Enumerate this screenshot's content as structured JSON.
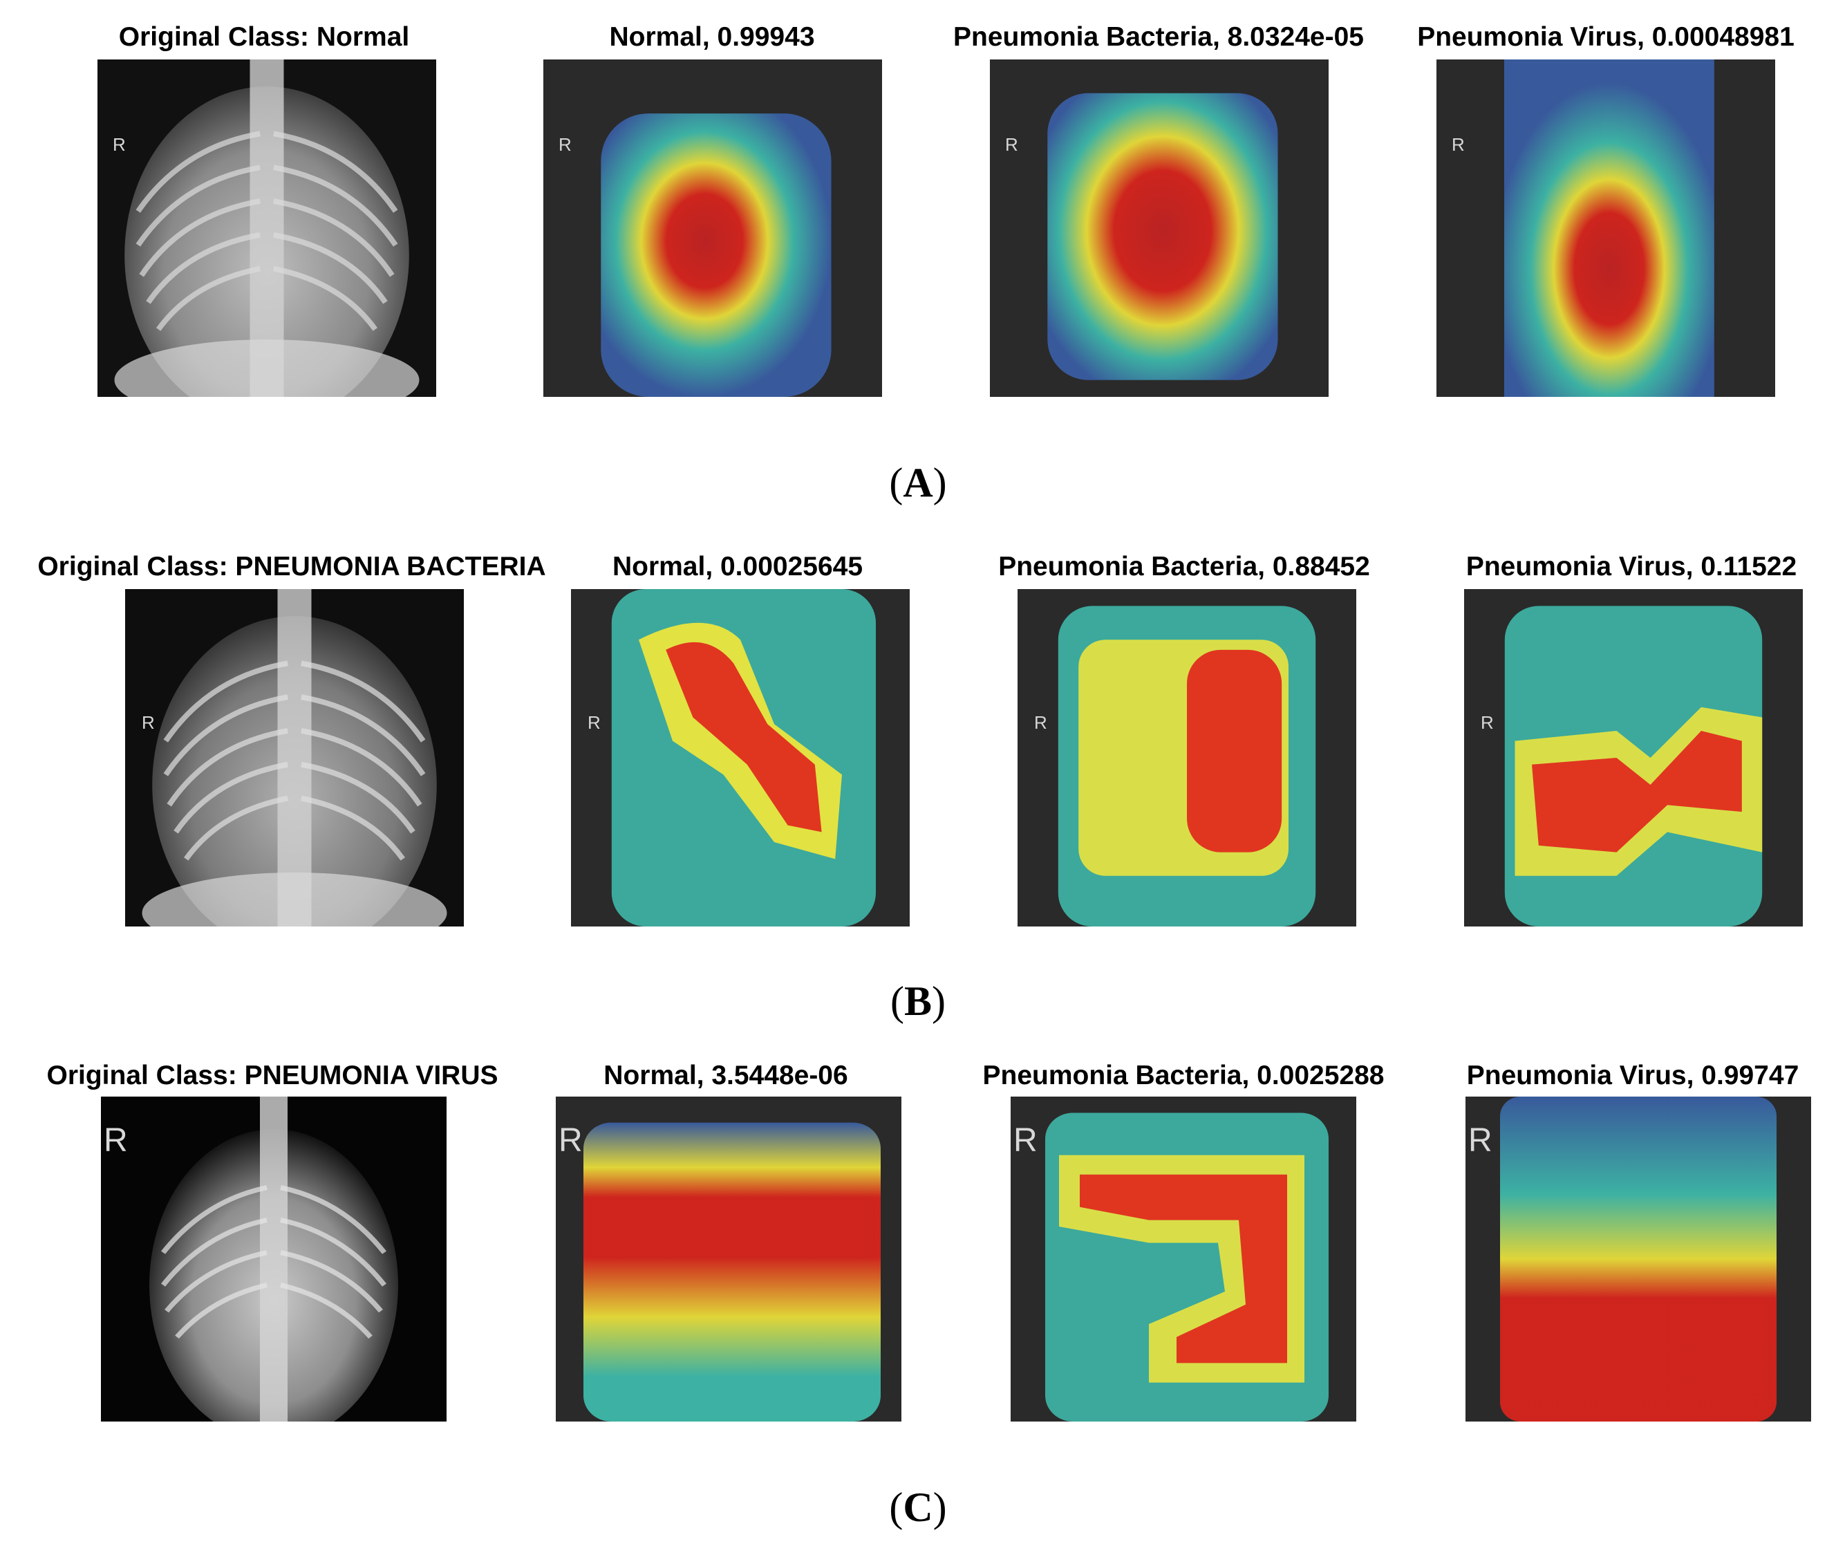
{
  "rows": [
    {
      "label": "A",
      "original_title": "Original Class: Normal",
      "titles": [
        "Normal, 0.99943",
        "Pneumonia Bacteria, 8.0324e-05",
        "Pneumonia Virus, 0.00048981"
      ]
    },
    {
      "label": "B",
      "original_title": "Original Class: PNEUMONIA BACTERIA",
      "titles": [
        "Normal, 0.00025645",
        "Pneumonia Bacteria, 0.88452",
        "Pneumonia Virus, 0.11522"
      ]
    },
    {
      "label": "C",
      "original_title": "Original Class: PNEUMONIA VIRUS",
      "titles": [
        "Normal, 3.5448e-06",
        "Pneumonia Bacteria, 0.0025288",
        "Pneumonia Virus, 0.99747"
      ]
    }
  ],
  "image_marker": "R",
  "heatmap_colors": {
    "hot": "#e0241c",
    "warm": "#f4e83a",
    "mid": "#3fc0b0",
    "cool": "#3a5fa8"
  }
}
